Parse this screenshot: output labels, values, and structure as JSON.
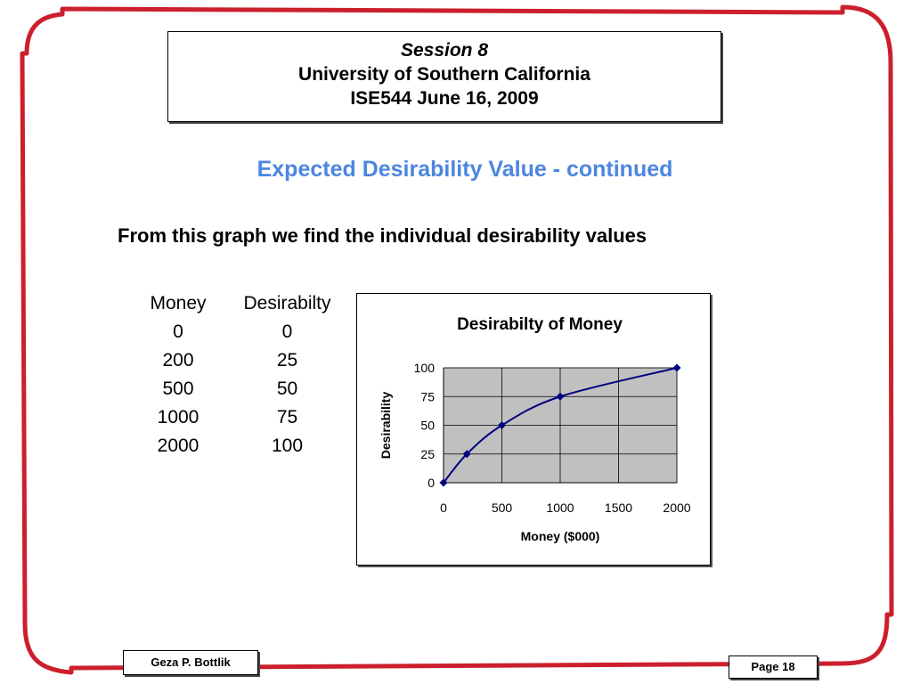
{
  "header": {
    "session": "Session 8",
    "university": "University of Southern California",
    "course": "ISE544 June 16, 2009"
  },
  "slide_title": "Expected Desirability Value - continued",
  "subtitle": "From this graph we find the individual desirability values",
  "table": {
    "headers": [
      "Money",
      "Desirabilty"
    ],
    "rows": [
      [
        "0",
        "0"
      ],
      [
        "200",
        "25"
      ],
      [
        "500",
        "50"
      ],
      [
        "1000",
        "75"
      ],
      [
        "2000",
        "100"
      ]
    ]
  },
  "chart_data": {
    "type": "line",
    "title": "Desirabilty of Money",
    "xlabel": "Money ($000)",
    "ylabel": "Desirability",
    "x": [
      0,
      200,
      500,
      1000,
      2000
    ],
    "series": [
      {
        "values": [
          0,
          25,
          50,
          75,
          100
        ]
      }
    ],
    "xlim": [
      0,
      2000
    ],
    "ylim": [
      0,
      100
    ],
    "xticks": [
      "0",
      "500",
      "1000",
      "1500",
      "2000"
    ],
    "yticks": [
      "0",
      "25",
      "50",
      "75",
      "100"
    ],
    "grid": true,
    "legend": "none",
    "colors": {
      "line": "#000080",
      "marker": "#000080",
      "plot_bg": "#c0c0c0"
    }
  },
  "footer": {
    "author": "Geza P. Bottlik",
    "page": "Page 18"
  },
  "colors": {
    "frame": "#cc1f2d",
    "title": "#4d86e0"
  }
}
